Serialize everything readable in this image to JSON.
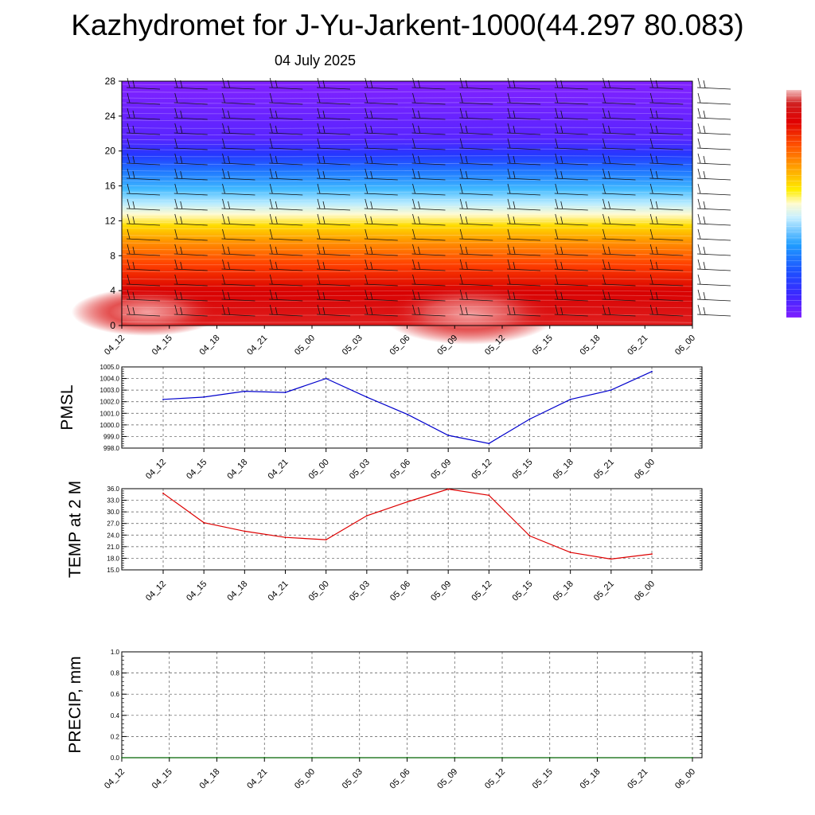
{
  "header": {
    "title": "Kazhydromet for J-Yu-Jarkent-1000(44.297 80.083)",
    "date": "04 July 2025"
  },
  "colors": {
    "pmsl_line": "#0000cc",
    "temp_line": "#dd0000",
    "precip_line": "#006400",
    "grid": "#555555"
  },
  "chart_data": [
    {
      "id": "cross-section",
      "type": "heatmap",
      "categories": [
        "04_12",
        "04_15",
        "04_18",
        "04_21",
        "05_00",
        "05_03",
        "05_06",
        "05_09",
        "05_12",
        "05_15",
        "05_18",
        "05_21",
        "06_00"
      ],
      "y_ticks": [
        "0",
        "4",
        "8",
        "12",
        "16",
        "20",
        "24",
        "28"
      ],
      "ylim": [
        0,
        28
      ],
      "colorbar": [
        "#7f1fff",
        "#3b28ff",
        "#1d4fff",
        "#1f9dff",
        "#8bdcff",
        "#fffde0",
        "#ffee00",
        "#ffa000",
        "#ff5000",
        "#e60000",
        "#d00000",
        "#f07070",
        "#f4c0c0"
      ],
      "wind_barbs": true
    },
    {
      "id": "pmsl",
      "type": "line",
      "ylabel": "PMSL",
      "categories": [
        "04_12",
        "04_15",
        "04_18",
        "04_21",
        "05_00",
        "05_03",
        "05_06",
        "05_09",
        "05_12",
        "05_15",
        "05_18",
        "05_21",
        "06_00"
      ],
      "values": [
        1002.2,
        1002.4,
        1002.9,
        1002.8,
        1004.0,
        1002.4,
        1000.9,
        999.1,
        998.4,
        1000.5,
        1002.2,
        1003.0,
        1004.6
      ],
      "ylim": [
        998.0,
        1005.0
      ],
      "y_ticks": [
        "998.0",
        "999.0",
        "1000.0",
        "1001.0",
        "1002.0",
        "1003.0",
        "1004.0",
        "1005.0"
      ],
      "grid": true
    },
    {
      "id": "temp2m",
      "type": "line",
      "ylabel": "TEMP at 2 M",
      "categories": [
        "04_12",
        "04_15",
        "04_18",
        "04_21",
        "05_00",
        "05_03",
        "05_06",
        "05_09",
        "05_12",
        "05_15",
        "05_18",
        "05_21",
        "06_00"
      ],
      "values": [
        34.8,
        27.2,
        25.0,
        23.4,
        22.8,
        29.0,
        32.6,
        35.9,
        34.3,
        23.8,
        19.5,
        17.8,
        19.1
      ],
      "ylim": [
        15.0,
        36.0
      ],
      "y_ticks": [
        "15.0",
        "18.0",
        "21.0",
        "24.0",
        "27.0",
        "30.0",
        "33.0",
        "36.0"
      ],
      "grid": true
    },
    {
      "id": "precip",
      "type": "line",
      "ylabel": "PRECIP, mm",
      "categories": [
        "04_12",
        "04_15",
        "04_18",
        "04_21",
        "05_00",
        "05_03",
        "05_06",
        "05_09",
        "05_12",
        "05_15",
        "05_18",
        "05_21",
        "06_00"
      ],
      "values": [
        0,
        0,
        0,
        0,
        0,
        0,
        0,
        0,
        0,
        0,
        0,
        0,
        0
      ],
      "ylim": [
        0.0,
        1.0
      ],
      "y_ticks": [
        "0.0",
        "0.2",
        "0.4",
        "0.6",
        "0.8",
        "1.0"
      ],
      "grid": true
    }
  ]
}
